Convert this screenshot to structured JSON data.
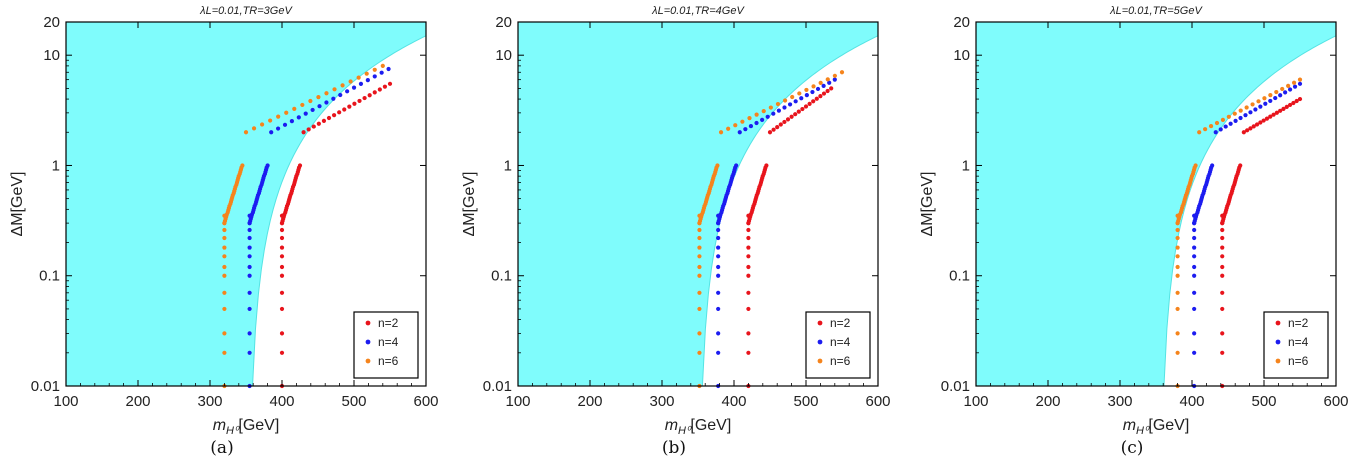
{
  "figure": {
    "panels": [
      {
        "caption": "(a)",
        "title": "λL=0.01,TR=3GeV"
      },
      {
        "caption": "(b)",
        "title": "λL=0.01,TR=4GeV"
      },
      {
        "caption": "(c)",
        "title": "λL=0.01,TR=5GeV"
      }
    ]
  },
  "colors": {
    "region_fill": "#7ffcfc",
    "region_edge": "#55e3e3",
    "n2": "#e8141c",
    "n4": "#1c1cf0",
    "n6": "#f5841c",
    "axis": "#000000"
  },
  "chart_data": [
    {
      "type": "scatter",
      "title": "λL=0.01,TR=3GeV",
      "xlabel": "mH0[GeV]",
      "ylabel": "ΔM[GeV]",
      "xlim": [
        100,
        600
      ],
      "ylim": [
        0.01,
        20
      ],
      "ylog": true,
      "xticks": [
        "100",
        "200",
        "300",
        "400",
        "500",
        "600"
      ],
      "yticks": [
        "0.01",
        "0.1",
        "1",
        "10",
        "20"
      ],
      "legend_position": "bottom-right",
      "excluded_region": {
        "x_min": 100,
        "edge_x_start": 355,
        "edge_x_end": 600,
        "y_top": 20,
        "y_top_right": 15
      },
      "series": [
        {
          "name": "n=2",
          "color": "#e8141c",
          "x_start": 400,
          "x_shift": 0,
          "diag_end": [
            550,
            5.5
          ]
        },
        {
          "name": "n=4",
          "color": "#1c1cf0",
          "x_start": 355,
          "x_shift": 0,
          "diag_end": [
            548,
            7.5
          ]
        },
        {
          "name": "n=6",
          "color": "#f5841c",
          "x_start": 320,
          "x_shift": 0,
          "diag_end": [
            540,
            8.0
          ]
        }
      ]
    },
    {
      "type": "scatter",
      "title": "λL=0.01,TR=4GeV",
      "xlabel": "mH0[GeV]",
      "ylabel": "ΔM[GeV]",
      "xlim": [
        100,
        600
      ],
      "ylim": [
        0.01,
        20
      ],
      "ylog": true,
      "xticks": [
        "100",
        "200",
        "300",
        "400",
        "500",
        "600"
      ],
      "yticks": [
        "0.01",
        "0.1",
        "1",
        "10",
        "20"
      ],
      "legend_position": "bottom-right",
      "excluded_region": {
        "x_min": 100,
        "edge_x_start": 352,
        "edge_x_end": 600,
        "y_top": 20,
        "y_top_right": 15
      },
      "series": [
        {
          "name": "n=2",
          "color": "#e8141c",
          "x_start": 420,
          "x_shift": 0,
          "diag_end": [
            535,
            5.0
          ]
        },
        {
          "name": "n=4",
          "color": "#1c1cf0",
          "x_start": 378,
          "x_shift": 0,
          "diag_end": [
            540,
            6.0
          ]
        },
        {
          "name": "n=6",
          "color": "#f5841c",
          "x_start": 352,
          "x_shift": 0,
          "diag_end": [
            550,
            7.0
          ]
        }
      ]
    },
    {
      "type": "scatter",
      "title": "λL=0.01,TR=5GeV",
      "xlabel": "mH0[GeV]",
      "ylabel": "ΔM[GeV]",
      "xlim": [
        100,
        600
      ],
      "ylim": [
        0.01,
        20
      ],
      "ylog": true,
      "xticks": [
        "100",
        "200",
        "300",
        "400",
        "500",
        "600"
      ],
      "yticks": [
        "0.01",
        "0.1",
        "1",
        "10",
        "20"
      ],
      "legend_position": "bottom-right",
      "excluded_region": {
        "x_min": 100,
        "edge_x_start": 357,
        "edge_x_end": 600,
        "y_top": 20,
        "y_top_right": 15
      },
      "series": [
        {
          "name": "n=2",
          "color": "#e8141c",
          "x_start": 442,
          "x_shift": 0,
          "diag_end": [
            550,
            4.0
          ]
        },
        {
          "name": "n=4",
          "color": "#1c1cf0",
          "x_start": 403,
          "x_shift": 0,
          "diag_end": [
            550,
            5.5
          ]
        },
        {
          "name": "n=6",
          "color": "#f5841c",
          "x_start": 380,
          "x_shift": 0,
          "diag_end": [
            550,
            6.0
          ]
        }
      ]
    }
  ]
}
